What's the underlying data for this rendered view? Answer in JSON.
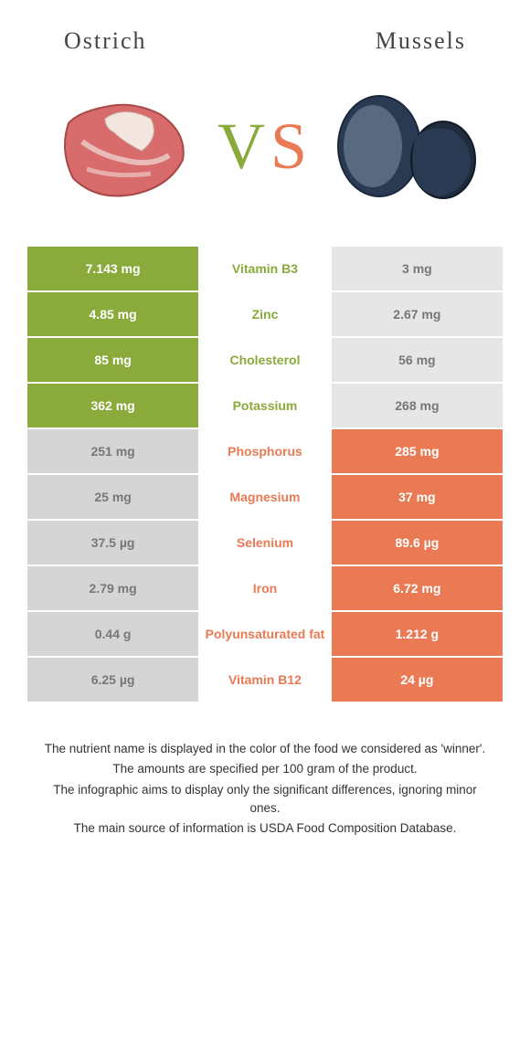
{
  "colors": {
    "left_winner": "#8aaa3b",
    "right_winner": "#e97a54",
    "loser_bg": "#e0e0e0",
    "loser_text": "#777777",
    "title_text": "#444444",
    "body_bg": "#ffffff"
  },
  "left": {
    "title": "Ostrich"
  },
  "right": {
    "title": "Mussels"
  },
  "vs": {
    "v": "V",
    "s": "S"
  },
  "rows": [
    {
      "nutrient": "Vitamin B3",
      "left": "7.143 mg",
      "right": "3 mg",
      "winner": "left"
    },
    {
      "nutrient": "Zinc",
      "left": "4.85 mg",
      "right": "2.67 mg",
      "winner": "left"
    },
    {
      "nutrient": "Cholesterol",
      "left": "85 mg",
      "right": "56 mg",
      "winner": "left"
    },
    {
      "nutrient": "Potassium",
      "left": "362 mg",
      "right": "268 mg",
      "winner": "left"
    },
    {
      "nutrient": "Phosphorus",
      "left": "251 mg",
      "right": "285 mg",
      "winner": "right"
    },
    {
      "nutrient": "Magnesium",
      "left": "25 mg",
      "right": "37 mg",
      "winner": "right"
    },
    {
      "nutrient": "Selenium",
      "left": "37.5 µg",
      "right": "89.6 µg",
      "winner": "right"
    },
    {
      "nutrient": "Iron",
      "left": "2.79 mg",
      "right": "6.72 mg",
      "winner": "right"
    },
    {
      "nutrient": "Polyunsaturated fat",
      "left": "0.44 g",
      "right": "1.212 g",
      "winner": "right"
    },
    {
      "nutrient": "Vitamin B12",
      "left": "6.25 µg",
      "right": "24 µg",
      "winner": "right"
    }
  ],
  "footnote": {
    "l1": "The nutrient name is displayed in the color of the food we considered as 'winner'.",
    "l2": "The amounts are specified per 100 gram of the product.",
    "l3": "The infographic aims to display only the significant differences, ignoring minor ones.",
    "l4": "The main source of information is USDA Food Composition Database."
  }
}
